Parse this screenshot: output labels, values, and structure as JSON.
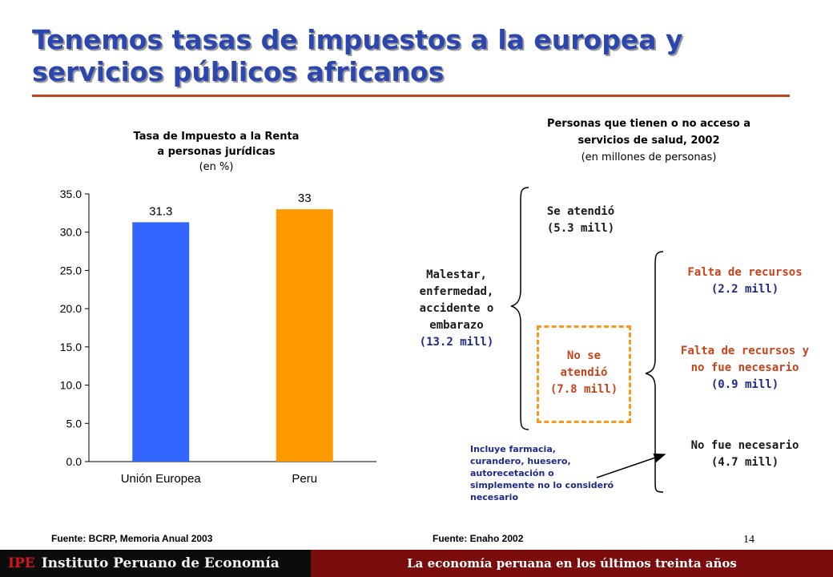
{
  "slide": {
    "title_line1": "Tenemos tasas de impuestos a la europea y",
    "title_line2": "servicios públicos africanos",
    "page_number": "14"
  },
  "left_chart": {
    "title_line1": "Tasa de Impuesto a la Renta",
    "title_line2": "a personas jurídicas",
    "subtitle": "(en %)",
    "source": "Fuente: BCRP, Memoria Anual 2003"
  },
  "right_panel": {
    "title_line1": "Personas que tienen o no acceso a",
    "title_line2": "servicios de salud, 2002",
    "subtitle": "(en millones de personas)",
    "source": "Fuente: Enaho 2002",
    "root": {
      "lines": [
        "Malestar,",
        "enfermedad,",
        "accidente o",
        "embarazo"
      ],
      "value": "(13.2 mill)"
    },
    "attended": {
      "label": "Se atendió",
      "value": "(5.3 mill)"
    },
    "not_attended": {
      "lines": [
        "No se",
        "atendió"
      ],
      "value": "(7.8 mill)"
    },
    "reasons": [
      {
        "lines": [
          "Falta de recursos"
        ],
        "value": "(2.2 mill)"
      },
      {
        "lines": [
          "Falta de recursos y",
          "no fue necesario"
        ],
        "value": "(0.9 mill)"
      },
      {
        "lines": [
          "No fue necesario"
        ],
        "value": "(4.7 mill)"
      }
    ],
    "note": [
      "Incluye farmacia,",
      "curandero, huesero,",
      "autorecetación o",
      "simplemente no lo consideró",
      "necesario"
    ]
  },
  "footer": {
    "logo": "IPE",
    "institute": "Instituto Peruano de Economía",
    "tagline": "La economía peruana en los últimos treinta años"
  },
  "colors": {
    "title": "#2c46b0",
    "bar_eu": "#3366ff",
    "bar_peru": "#ff9900",
    "accent_rule": "#c0461f",
    "dashed_box": "#f59a1a"
  },
  "chart_data": {
    "type": "bar",
    "categories": [
      "Unión Europea",
      "Peru"
    ],
    "values": [
      31.3,
      33
    ],
    "data_labels": [
      "31.3",
      "33"
    ],
    "title": "Tasa de Impuesto a la Renta a personas jurídicas",
    "ylabel": "",
    "ylim": [
      0,
      35
    ],
    "yticks": [
      0,
      5,
      10,
      15,
      20,
      25,
      30,
      35
    ],
    "ytick_labels": [
      "0.0",
      "5.0",
      "10.0",
      "15.0",
      "20.0",
      "25.0",
      "30.0",
      "35.0"
    ],
    "grid": false,
    "legend": "none"
  }
}
